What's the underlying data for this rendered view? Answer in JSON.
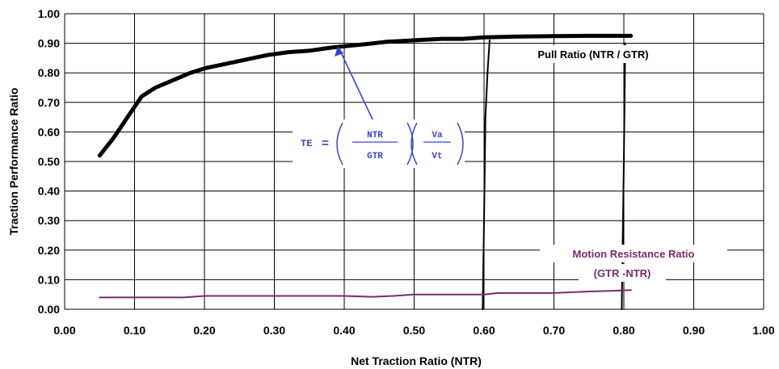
{
  "chart_data": {
    "type": "line",
    "xlabel": "Net Traction Ratio (NTR)",
    "ylabel": "Traction Performance Ratio",
    "xlim": [
      0,
      1
    ],
    "ylim": [
      0,
      1
    ],
    "grid": true,
    "x_ticks": [
      "0.00",
      "0.10",
      "0.20",
      "0.30",
      "0.40",
      "0.50",
      "0.60",
      "0.70",
      "0.80",
      "0.90",
      "1.00"
    ],
    "y_ticks": [
      "0.00",
      "0.10",
      "0.20",
      "0.30",
      "0.40",
      "0.50",
      "0.60",
      "0.70",
      "0.80",
      "0.90",
      "1.00"
    ],
    "series": [
      {
        "key": "te",
        "color": "#000000",
        "x": [
          0.05,
          0.07,
          0.09,
          0.11,
          0.13,
          0.15,
          0.18,
          0.2,
          0.23,
          0.26,
          0.29,
          0.32,
          0.35,
          0.38,
          0.4,
          0.43,
          0.46,
          0.5,
          0.54,
          0.57,
          0.6,
          0.65,
          0.7,
          0.75,
          0.78,
          0.81
        ],
        "y": [
          0.52,
          0.58,
          0.65,
          0.72,
          0.75,
          0.77,
          0.8,
          0.815,
          0.83,
          0.845,
          0.86,
          0.87,
          0.875,
          0.885,
          0.89,
          0.897,
          0.905,
          0.91,
          0.915,
          0.915,
          0.92,
          0.923,
          0.924,
          0.925,
          0.925,
          0.925
        ]
      },
      {
        "key": "pull",
        "color": "#000000",
        "x": [
          0.598,
          0.6,
          0.602,
          0.605,
          0.608
        ],
        "y": [
          0.0,
          0.3,
          0.65,
          0.8,
          0.91
        ]
      },
      {
        "key": "pull",
        "color": "#000000",
        "x": [
          0.797,
          0.8,
          0.802
        ],
        "y": [
          0.0,
          0.5,
          0.9
        ]
      },
      {
        "key": "mr",
        "color": "#7a2a6b",
        "x": [
          0.05,
          0.1,
          0.15,
          0.17,
          0.2,
          0.25,
          0.3,
          0.35,
          0.4,
          0.44,
          0.47,
          0.5,
          0.55,
          0.6,
          0.62,
          0.65,
          0.7,
          0.75,
          0.78,
          0.81
        ],
        "y": [
          0.04,
          0.04,
          0.04,
          0.04,
          0.045,
          0.045,
          0.045,
          0.045,
          0.045,
          0.042,
          0.045,
          0.05,
          0.05,
          0.05,
          0.055,
          0.055,
          0.055,
          0.06,
          0.062,
          0.065
        ]
      }
    ],
    "annotations": {
      "pull_label": "Pull Ratio (NTR / GTR)",
      "mr_label_1": "Motion Resistance Ratio",
      "mr_label_2": "(GTR -NTR)",
      "te_formula": {
        "lhs": "TE",
        "eq": "=",
        "num1": "NTR",
        "den1": "GTR",
        "num2": "Va",
        "den2": "Vt"
      },
      "arrow_target": {
        "x": 0.4,
        "y": 0.89
      }
    },
    "colors": {
      "formula": "#3a46c8",
      "arrow": "#3a46c8",
      "motion_resistance": "#7a2a6b"
    }
  }
}
